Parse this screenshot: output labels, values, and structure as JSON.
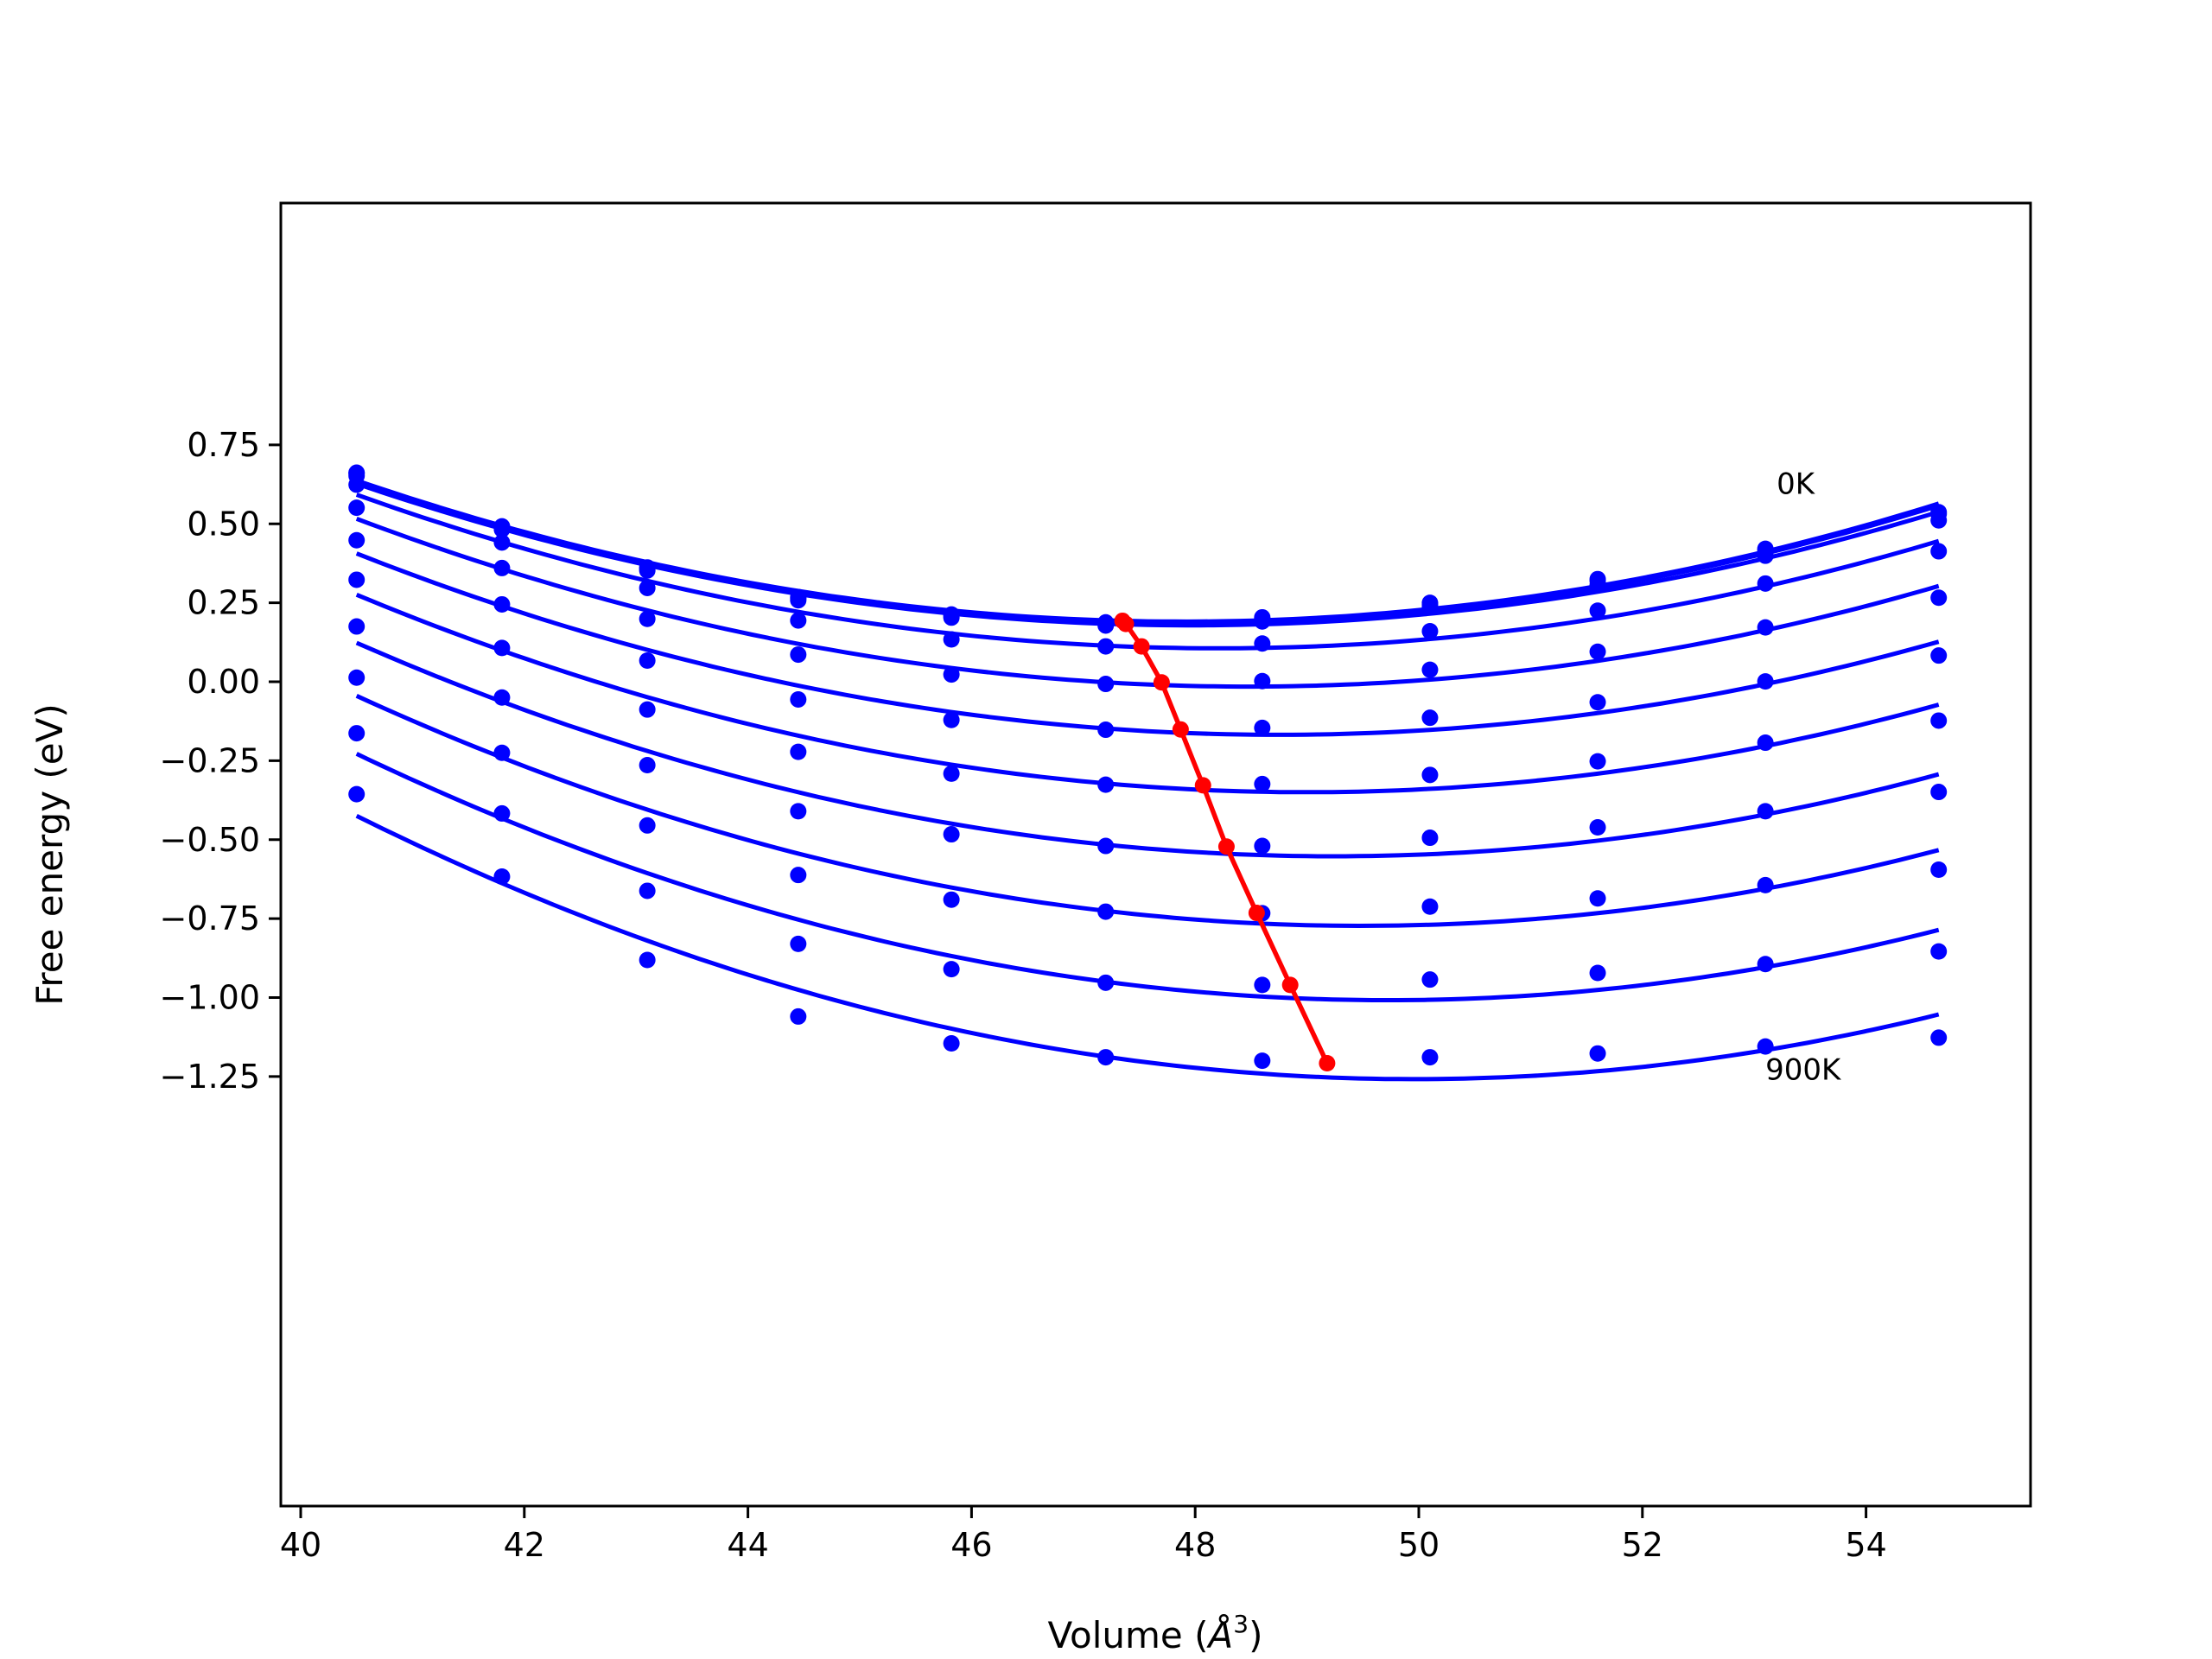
{
  "chart_data": {
    "type": "line",
    "xlabel": "Volume (Å³)",
    "xlabel_main": "Volume (",
    "xlabel_symbol": "Å",
    "xlabel_exp": "3",
    "xlabel_close": ")",
    "ylabel": "Free energy (eV)",
    "xlim": [
      39.8,
      55.3
    ],
    "ylim": [
      -1.3,
      0.76
    ],
    "x_ticks": [
      40,
      42,
      44,
      46,
      48,
      50,
      52,
      54
    ],
    "x_tick_labels": [
      "40",
      "42",
      "44",
      "46",
      "48",
      "50",
      "52",
      "54"
    ],
    "y_ticks": [
      0.75,
      0.5,
      0.25,
      0.0,
      -0.25,
      -0.5,
      -0.75,
      -1.0,
      -1.25
    ],
    "y_tick_labels": [
      "0.75",
      "0.50",
      "0.25",
      "0.00",
      "−0.25",
      "−0.50",
      "−0.75",
      "−1.00",
      "−1.25"
    ],
    "grid": false,
    "annotations": [
      {
        "text": "0K",
        "x": 53.2,
        "y": 0.595
      },
      {
        "text": "900K",
        "x": 53.1,
        "y": -1.26
      }
    ],
    "volumes": [
      40.5,
      41.8,
      43.1,
      44.45,
      45.82,
      47.2,
      48.6,
      50.1,
      51.6,
      53.1,
      54.65
    ],
    "series": [
      {
        "color": "#0000ff",
        "points": [
          0.662,
          0.492,
          0.362,
          0.268,
          0.213,
          0.188,
          0.204,
          0.25,
          0.325,
          0.421,
          0.537
        ]
      },
      {
        "color": "#0000ff",
        "points": [
          0.66,
          0.488,
          0.358,
          0.264,
          0.209,
          0.183,
          0.199,
          0.244,
          0.319,
          0.415,
          0.531
        ]
      },
      {
        "color": "#0000ff",
        "points": [
          0.652,
          0.482,
          0.352,
          0.258,
          0.203,
          0.178,
          0.191,
          0.236,
          0.306,
          0.399,
          0.511
        ]
      },
      {
        "color": "#0000ff",
        "points": [
          0.624,
          0.441,
          0.297,
          0.194,
          0.134,
          0.112,
          0.121,
          0.16,
          0.225,
          0.311,
          0.413
        ]
      },
      {
        "color": "#0000ff",
        "points": [
          0.551,
          0.36,
          0.199,
          0.086,
          0.023,
          -0.007,
          0.002,
          0.038,
          0.095,
          0.172,
          0.266
        ]
      },
      {
        "color": "#0000ff",
        "points": [
          0.448,
          0.245,
          0.067,
          -0.056,
          -0.121,
          -0.152,
          -0.146,
          -0.114,
          -0.065,
          0.001,
          0.083
        ]
      },
      {
        "color": "#0000ff",
        "points": [
          0.323,
          0.107,
          -0.088,
          -0.222,
          -0.291,
          -0.326,
          -0.324,
          -0.295,
          -0.252,
          -0.193,
          -0.123
        ]
      },
      {
        "color": "#0000ff",
        "points": [
          0.175,
          -0.05,
          -0.264,
          -0.41,
          -0.483,
          -0.52,
          -0.52,
          -0.494,
          -0.461,
          -0.41,
          -0.349
        ]
      },
      {
        "color": "#0000ff",
        "points": [
          0.013,
          -0.225,
          -0.455,
          -0.612,
          -0.69,
          -0.728,
          -0.733,
          -0.712,
          -0.686,
          -0.644,
          -0.595
        ]
      },
      {
        "color": "#0000ff",
        "points": [
          -0.163,
          -0.417,
          -0.662,
          -0.83,
          -0.91,
          -0.953,
          -0.96,
          -0.943,
          -0.922,
          -0.894,
          -0.854
        ]
      },
      {
        "color": "#0000ff",
        "points": [
          -0.356,
          -0.617,
          -0.881,
          -1.06,
          -1.145,
          -1.189,
          -1.2,
          -1.189,
          -1.177,
          -1.155,
          -1.127
        ]
      }
    ],
    "minima": {
      "color": "#ff0000",
      "x": [
        47.35,
        47.38,
        47.52,
        47.7,
        47.87,
        48.07,
        48.28,
        48.55,
        48.85,
        49.18
      ],
      "y": [
        0.193,
        0.183,
        0.112,
        -0.002,
        -0.151,
        -0.328,
        -0.522,
        -0.732,
        -0.96,
        -1.208
      ]
    }
  }
}
